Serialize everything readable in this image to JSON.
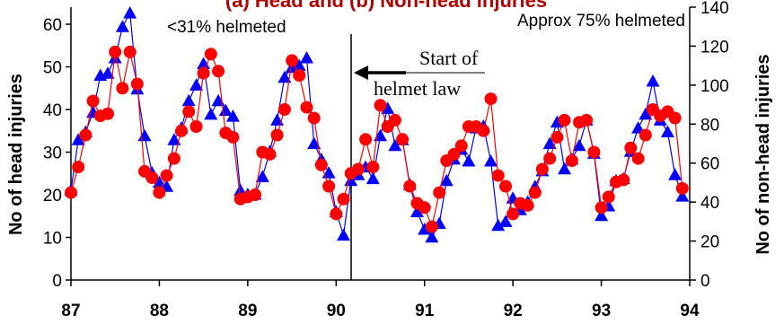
{
  "chart_data": {
    "type": "line",
    "title": "(a) Head and (b) Non-head injuries",
    "ylabel_left": "No of head injuries",
    "ylabel_right": "No of non-head injuries",
    "x_ticks": [
      "87",
      "88",
      "89",
      "90",
      "91",
      "92",
      "93",
      "94"
    ],
    "y_left_ticks": [
      "0",
      "10",
      "20",
      "30",
      "40",
      "50",
      "60"
    ],
    "y_right_ticks": [
      "0",
      "20",
      "40",
      "60",
      "80",
      "100",
      "120",
      "140"
    ],
    "ylim_left": [
      0,
      64
    ],
    "ylim_right": [
      0,
      140
    ],
    "xlim": [
      87,
      94
    ],
    "annotations": {
      "pre_law": "<31% helmeted",
      "post_law": "Approx 75% helmeted",
      "law_line1": "Start of",
      "law_line2": "helmet law",
      "law_x": 90.17
    },
    "colors": {
      "head": "#ff0000",
      "non_head": "#0000ff",
      "title": "#b00000"
    },
    "series": [
      {
        "name": "Head injuries",
        "axis": "left",
        "marker": "circle",
        "color": "#ff0000",
        "x": [
          87.0,
          87.083,
          87.167,
          87.25,
          87.333,
          87.417,
          87.5,
          87.583,
          87.667,
          87.75,
          87.833,
          87.917,
          88.0,
          88.083,
          88.167,
          88.25,
          88.333,
          88.417,
          88.5,
          88.583,
          88.667,
          88.75,
          88.833,
          88.917,
          89.0,
          89.083,
          89.167,
          89.25,
          89.333,
          89.417,
          89.5,
          89.583,
          89.667,
          89.75,
          89.833,
          89.917,
          90.0,
          90.083,
          90.167,
          90.25,
          90.333,
          90.417,
          90.5,
          90.583,
          90.667,
          90.75,
          90.833,
          90.917,
          91.0,
          91.083,
          91.167,
          91.25,
          91.333,
          91.417,
          91.5,
          91.583,
          91.667,
          91.75,
          91.833,
          91.917,
          92.0,
          92.083,
          92.167,
          92.25,
          92.333,
          92.417,
          92.5,
          92.583,
          92.667,
          92.75,
          92.833,
          92.917,
          93.0,
          93.083,
          93.167,
          93.25,
          93.333,
          93.417,
          93.5,
          93.583,
          93.667,
          93.75,
          93.833,
          93.917
        ],
        "values": [
          20.5,
          26.5,
          34,
          42,
          38.5,
          39,
          53.5,
          45,
          53.5,
          46,
          25.5,
          24,
          20.5,
          24.5,
          28.5,
          35,
          39.5,
          36,
          48.5,
          53,
          49,
          34.5,
          33.5,
          19,
          19.5,
          20,
          30,
          29.5,
          34,
          40,
          51.5,
          48,
          40.5,
          38,
          27,
          22,
          15.5,
          19,
          25,
          26,
          33,
          26.5,
          41,
          36,
          37.5,
          33,
          22,
          18,
          17,
          12.5,
          20.5,
          28,
          29.5,
          31.5,
          36,
          36,
          35,
          42.5,
          24.5,
          22,
          15.5,
          18,
          17.5,
          20.5,
          26,
          28.5,
          33.5,
          37.5,
          28,
          37,
          37.5,
          30,
          17,
          19.5,
          23,
          23.5,
          31,
          28.5,
          34,
          40,
          38.5,
          39.5,
          38,
          21.5
        ]
      },
      {
        "name": "Non-head injuries",
        "axis": "right",
        "marker": "triangle",
        "color": "#0000ff",
        "x": [
          87.0,
          87.083,
          87.167,
          87.25,
          87.333,
          87.417,
          87.5,
          87.583,
          87.667,
          87.75,
          87.833,
          87.917,
          88.0,
          88.083,
          88.167,
          88.25,
          88.333,
          88.417,
          88.5,
          88.583,
          88.667,
          88.75,
          88.833,
          88.917,
          89.0,
          89.083,
          89.167,
          89.25,
          89.333,
          89.417,
          89.5,
          89.583,
          89.667,
          89.75,
          89.833,
          89.917,
          90.0,
          90.083,
          90.167,
          90.25,
          90.333,
          90.417,
          90.5,
          90.583,
          90.667,
          90.75,
          90.833,
          90.917,
          91.0,
          91.083,
          91.167,
          91.25,
          91.333,
          91.417,
          91.5,
          91.583,
          91.667,
          91.75,
          91.833,
          91.917,
          92.0,
          92.083,
          92.167,
          92.25,
          92.333,
          92.417,
          92.5,
          92.583,
          92.667,
          92.75,
          92.833,
          92.917,
          93.0,
          93.083,
          93.167,
          93.25,
          93.333,
          93.417,
          93.5,
          93.583,
          93.667,
          93.75,
          93.833,
          93.917
        ],
        "values": [
          46,
          72,
          76,
          86,
          105,
          106,
          114,
          130,
          137,
          98,
          74,
          55,
          50,
          48,
          72,
          78,
          92,
          100,
          111,
          85,
          92,
          87,
          84,
          46,
          44,
          44,
          53,
          66,
          82,
          104,
          109,
          110,
          114,
          70,
          62,
          55,
          35,
          23,
          51,
          54,
          58,
          52,
          74,
          88,
          69,
          72,
          49,
          35,
          26,
          22,
          29,
          51,
          62,
          67,
          61,
          78,
          79,
          61,
          28,
          30,
          42,
          36,
          40,
          48,
          56,
          70,
          81,
          57,
          62,
          69,
          82,
          65,
          33,
          38,
          51,
          52,
          66,
          78,
          85,
          102,
          82,
          76,
          54,
          43
        ]
      }
    ]
  }
}
